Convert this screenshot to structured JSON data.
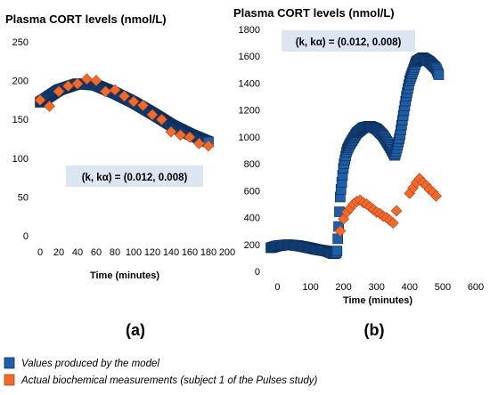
{
  "legend": [
    {
      "label": "Values produced by the model",
      "color": "#1f5fa8",
      "edge": "#0d2f5c",
      "marker": "square"
    },
    {
      "label": "Actual biochemical measurements (subject 1 of the Pulses study)",
      "color": "#f26a2a",
      "edge": "#b8431a",
      "marker": "diamond"
    }
  ],
  "chart_data": [
    {
      "type": "scatter",
      "panel_label": "(a)",
      "title": "Plasma CORT levels (nmol/L)",
      "xlabel": "Time (minutes)",
      "ylabel": "",
      "xlim": [
        0,
        200
      ],
      "ylim": [
        0,
        250
      ],
      "xticks": [
        0,
        20,
        40,
        60,
        80,
        100,
        120,
        140,
        160,
        180,
        200
      ],
      "yticks": [
        0,
        50,
        100,
        150,
        200,
        250
      ],
      "grid": false,
      "annotation": "(k, kα) = (0.012, 0.008)",
      "series": [
        {
          "name": "Values produced by the model",
          "marker": "square",
          "curve": "smooth",
          "x": [
            0,
            20,
            40,
            60,
            80,
            100,
            120,
            140,
            160,
            180
          ],
          "y": [
            172,
            188,
            196,
            194,
            184,
            172,
            158,
            143,
            131,
            121
          ]
        },
        {
          "name": "Actual biochemical measurements (subject 1 of the Pulses study)",
          "marker": "diamond",
          "x": [
            0,
            10,
            20,
            30,
            40,
            50,
            60,
            70,
            80,
            90,
            100,
            110,
            120,
            130,
            140,
            150,
            160,
            170,
            180
          ],
          "y": [
            175,
            167,
            186,
            193,
            196,
            202,
            200,
            186,
            188,
            180,
            173,
            168,
            156,
            150,
            134,
            130,
            127,
            119,
            116
          ]
        }
      ]
    },
    {
      "type": "scatter",
      "panel_label": "(b)",
      "title": "Plasma CORT levels (nmol/L)",
      "xlabel": "Time (minutes)",
      "ylabel": "",
      "xlim": [
        -20,
        600
      ],
      "ylim": [
        0,
        1800
      ],
      "xticks": [
        0,
        100,
        200,
        300,
        400,
        500,
        600
      ],
      "yticks": [
        0,
        200,
        400,
        600,
        800,
        1000,
        1200,
        1400,
        1600,
        1800
      ],
      "grid": false,
      "annotation": "(k, kα) = (0.012, 0.008)",
      "series": [
        {
          "name": "Values produced by the model",
          "marker": "square",
          "curve": "smooth",
          "x": [
            -20,
            0,
            30,
            60,
            90,
            120,
            150,
            170,
            180,
            185,
            190,
            200,
            210,
            220,
            240,
            260,
            280,
            300,
            320,
            340,
            355,
            360,
            370,
            380,
            390,
            400,
            420,
            440,
            460,
            480,
            490
          ],
          "y": [
            175,
            190,
            198,
            192,
            178,
            162,
            150,
            130,
            140,
            330,
            560,
            780,
            900,
            950,
            1030,
            1070,
            1080,
            1060,
            1010,
            930,
            860,
            900,
            1000,
            1150,
            1300,
            1420,
            1560,
            1590,
            1560,
            1510,
            1450
          ]
        },
        {
          "name": "Actual biochemical measurements (subject 1 of the Pulses study)",
          "marker": "diamond",
          "x": [
            190,
            200,
            210,
            220,
            230,
            240,
            250,
            260,
            270,
            280,
            290,
            300,
            310,
            320,
            330,
            340,
            350,
            360,
            400,
            410,
            420,
            430,
            440,
            450,
            460,
            470,
            480
          ],
          "y": [
            300,
            390,
            440,
            470,
            500,
            520,
            530,
            510,
            500,
            480,
            460,
            440,
            430,
            410,
            400,
            380,
            360,
            450,
            580,
            620,
            660,
            690,
            660,
            640,
            610,
            590,
            560
          ]
        }
      ]
    }
  ]
}
